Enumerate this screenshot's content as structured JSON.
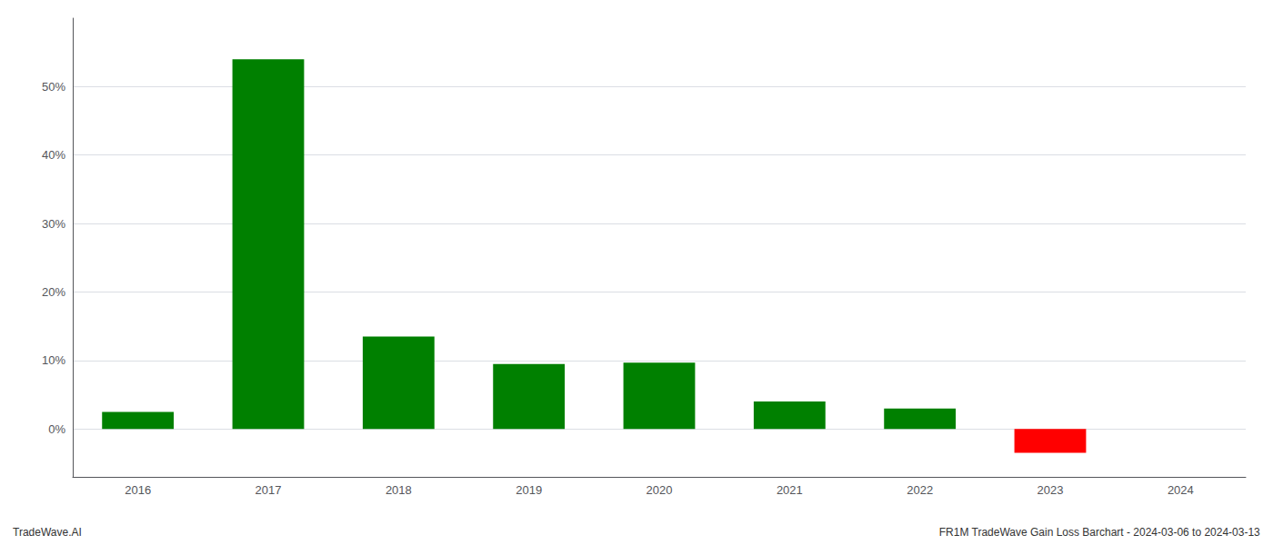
{
  "chart_data": {
    "type": "bar",
    "title": "FR1M TradeWave Gain Loss Barchart - 2024-03-06 to 2024-03-13",
    "annotations": [
      "TradeWave.AI"
    ],
    "categories": [
      "2016",
      "2017",
      "2018",
      "2019",
      "2020",
      "2021",
      "2022",
      "2023",
      "2024"
    ],
    "values": [
      2.5,
      54.0,
      13.5,
      9.5,
      9.7,
      4.0,
      3.0,
      -3.5,
      0.0
    ],
    "colors": [
      "#008000",
      "#008000",
      "#008000",
      "#008000",
      "#008000",
      "#008000",
      "#008000",
      "#ff0000",
      "#008000"
    ],
    "ylim": [
      -7,
      60
    ],
    "yticks": [
      {
        "value": 0,
        "label": "0%"
      },
      {
        "value": 10,
        "label": "10%"
      },
      {
        "value": 20,
        "label": "20%"
      },
      {
        "value": 30,
        "label": "30%"
      },
      {
        "value": 40,
        "label": "40%"
      },
      {
        "value": 50,
        "label": "50%"
      }
    ],
    "grid": true
  }
}
